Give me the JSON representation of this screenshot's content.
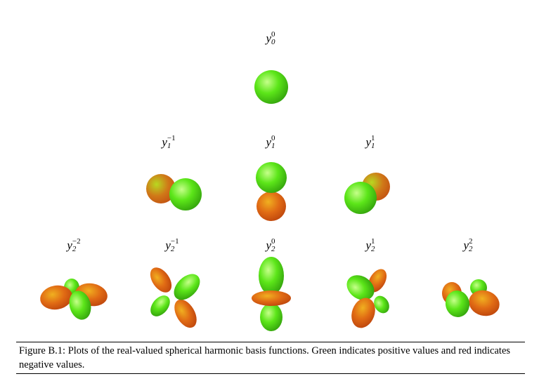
{
  "figure": {
    "rows": [
      [
        {
          "l": "0",
          "m": "0"
        }
      ],
      [
        {
          "l": "1",
          "m": "−1"
        },
        {
          "l": "1",
          "m": "0"
        },
        {
          "l": "1",
          "m": "1"
        }
      ],
      [
        {
          "l": "2",
          "m": "−2"
        },
        {
          "l": "2",
          "m": "−1"
        },
        {
          "l": "2",
          "m": "0"
        },
        {
          "l": "2",
          "m": "1"
        },
        {
          "l": "2",
          "m": "2"
        }
      ]
    ],
    "symbol": "y",
    "colors": {
      "positive": "#5ce619",
      "negative": "#e05a14"
    }
  },
  "caption": {
    "label": "Figure B.1:",
    "text": "Plots of the real-valued spherical harmonic basis functions. Green indicates positive values and red indicates negative values."
  }
}
